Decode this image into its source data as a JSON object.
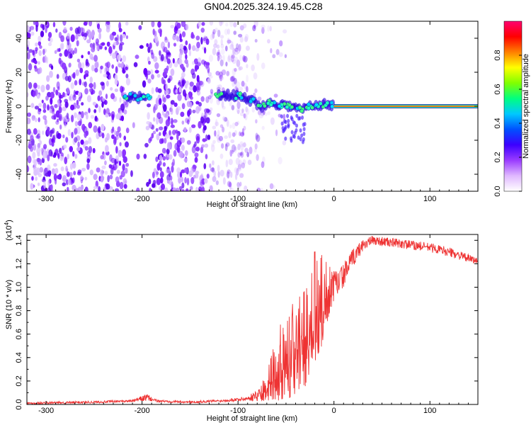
{
  "figure_title": "GN04.2025.324.19.45.C28",
  "chart_data": [
    {
      "type": "heatmap",
      "title": "GN04.2025.324.19.45.C28",
      "xlabel": "Height of straight line (km)",
      "ylabel": "Frequency (Hz)",
      "xlim": [
        -320,
        150
      ],
      "ylim": [
        -50,
        50
      ],
      "x_ticks": [
        -300,
        -200,
        -100,
        0,
        100
      ],
      "y_ticks": [
        -40,
        -20,
        0,
        20,
        40
      ],
      "x_tick_labels": [
        "-300",
        "-200",
        "-100",
        "0",
        "100"
      ],
      "y_tick_labels": [
        "-40",
        "-20",
        "0",
        "20",
        "40"
      ],
      "colorbar": {
        "label": "Normalized spectral amplitude",
        "range": [
          0,
          1
        ],
        "ticks": [
          0.0,
          0.2,
          0.4,
          0.6,
          0.8
        ],
        "tick_labels": [
          "0.0",
          "0.2",
          "0.4",
          "0.6",
          "0.8"
        ],
        "colors": [
          "#ffffff",
          "#e0b8ff",
          "#9a3cff",
          "#3c00ff",
          "#0050ff",
          "#00c8ff",
          "#00ff80",
          "#80ff00",
          "#ffff00",
          "#ff8000",
          "#ff0000",
          "#ff0070"
        ]
      },
      "noise_region": {
        "x_range": [
          -320,
          -90
        ],
        "freq_range": [
          -50,
          50
        ]
      },
      "ridge": {
        "description": "track near 0 Hz",
        "x": [
          -215,
          -205,
          -195,
          -120,
          -100,
          -85,
          -75,
          -65,
          -55,
          -45,
          -35,
          -25,
          -15,
          -5,
          0,
          150
        ],
        "freq": [
          6,
          5,
          6,
          7,
          6,
          3,
          0,
          2,
          1,
          0,
          -2,
          0,
          1,
          1,
          0,
          0
        ]
      },
      "steady_line": {
        "x_range": [
          0,
          150
        ],
        "freq": 0
      }
    },
    {
      "type": "line",
      "xlabel": "Height of straight line (km)",
      "ylabel": "SNR (10 * v/v)",
      "multiplier_label": "(x10",
      "multiplier_exp": "4",
      "multiplier_close": ")",
      "xlim": [
        -320,
        150
      ],
      "ylim": [
        0.0,
        1.45
      ],
      "x_ticks": [
        -300,
        -200,
        -100,
        0,
        100
      ],
      "y_ticks": [
        0.0,
        0.2,
        0.4,
        0.6,
        0.8,
        1.0,
        1.2,
        1.4
      ],
      "x_tick_labels": [
        "-300",
        "-200",
        "-100",
        "0",
        "100"
      ],
      "y_tick_labels": [
        "0.0",
        "0.2",
        "0.4",
        "0.6",
        "0.8",
        "1.0",
        "1.2",
        "1.4"
      ],
      "series": [
        {
          "name": "SNR",
          "color": "#ee3333",
          "x": [
            -320,
            -250,
            -210,
            -195,
            -185,
            -150,
            -120,
            -90,
            -80,
            -70,
            -60,
            -50,
            -40,
            -30,
            -20,
            -10,
            0,
            10,
            20,
            30,
            40,
            60,
            80,
            100,
            120,
            150
          ],
          "y": [
            0.01,
            0.02,
            0.03,
            0.06,
            0.03,
            0.02,
            0.03,
            0.05,
            0.08,
            0.15,
            0.3,
            0.45,
            0.5,
            0.7,
            0.85,
            0.9,
            1.0,
            1.1,
            1.25,
            1.36,
            1.4,
            1.38,
            1.36,
            1.34,
            1.3,
            1.22
          ],
          "spread": [
            0.01,
            0.01,
            0.01,
            0.03,
            0.01,
            0.01,
            0.01,
            0.02,
            0.05,
            0.12,
            0.28,
            0.4,
            0.45,
            0.55,
            0.5,
            0.35,
            0.15,
            0.1,
            0.08,
            0.05,
            0.04,
            0.04,
            0.04,
            0.04,
            0.04,
            0.03
          ]
        }
      ]
    }
  ]
}
